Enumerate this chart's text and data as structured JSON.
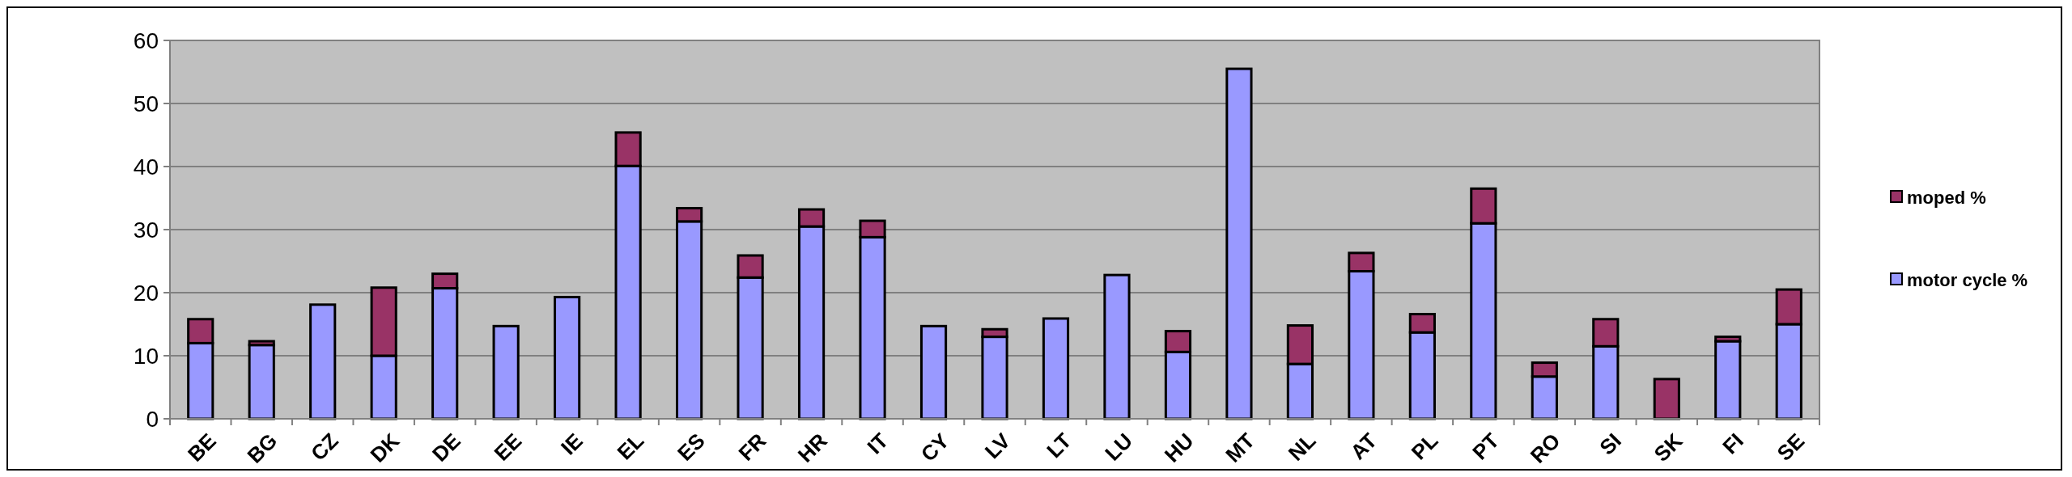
{
  "chart_data": {
    "type": "bar",
    "stacked": true,
    "categories": [
      "BE",
      "BG",
      "CZ",
      "DK",
      "DE",
      "EE",
      "IE",
      "EL",
      "ES",
      "FR",
      "HR",
      "IT",
      "CY",
      "LV",
      "LT",
      "LU",
      "HU",
      "MT",
      "NL",
      "AT",
      "PL",
      "PT",
      "RO",
      "SI",
      "SK",
      "FI",
      "SE"
    ],
    "series": [
      {
        "name": "motor cycle %",
        "color": "#9999ff",
        "values": [
          12,
          11.7,
          18.1,
          10,
          20.7,
          14.7,
          19.3,
          40.1,
          31.3,
          22.4,
          30.5,
          28.8,
          14.7,
          13,
          15.9,
          22.8,
          10.6,
          55.5,
          8.7,
          23.4,
          13.7,
          31,
          6.7,
          11.5,
          0,
          12.3,
          15
        ]
      },
      {
        "name": "moped %",
        "color": "#993366",
        "values": [
          3.8,
          0.6,
          0,
          10.8,
          2.3,
          0,
          0,
          5.3,
          2.1,
          3.5,
          2.7,
          2.6,
          0,
          1.2,
          0,
          0,
          3.3,
          0,
          6.1,
          2.9,
          2.9,
          5.5,
          2.2,
          4.3,
          6.3,
          0.7,
          5.5
        ]
      }
    ],
    "ylim": [
      0,
      60
    ],
    "yticks": [
      0,
      10,
      20,
      30,
      40,
      50,
      60
    ],
    "grid": "y",
    "legend": "right"
  }
}
